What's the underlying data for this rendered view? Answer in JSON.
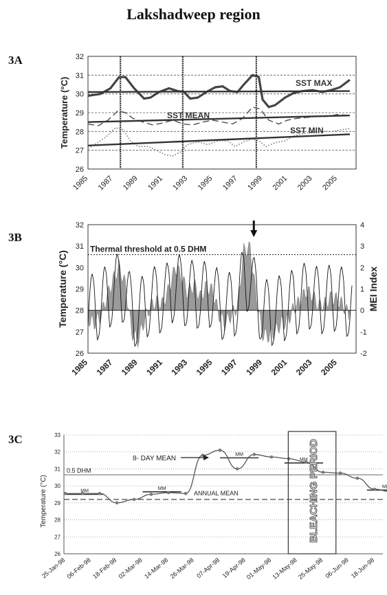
{
  "page_title": "Lakshadweep region",
  "chart_data": [
    {
      "panel": "3A",
      "type": "line",
      "ylabel": "Temperature (°C)",
      "xlim": [
        1985,
        2006.5
      ],
      "ylim": [
        26,
        32
      ],
      "yticks": [
        26,
        27,
        28,
        29,
        30,
        31,
        32
      ],
      "xticks": [
        "1985",
        "1987",
        "1989",
        "1991",
        "1993",
        "1995",
        "1997",
        "1999",
        "2001",
        "2003",
        "2005"
      ],
      "grid": "horizontal dashed",
      "vlines": [
        1987.6,
        1992.6,
        1998.5
      ],
      "series": [
        {
          "name": "SST MAX",
          "style": "thick",
          "points": [
            [
              1985,
              29.9
            ],
            [
              1986,
              30.0
            ],
            [
              1986.8,
              30.3
            ],
            [
              1987.5,
              30.9
            ],
            [
              1988,
              30.9
            ],
            [
              1988.7,
              30.3
            ],
            [
              1989.5,
              29.75
            ],
            [
              1990,
              29.8
            ],
            [
              1990.7,
              30.1
            ],
            [
              1991.5,
              30.3
            ],
            [
              1992.2,
              30.15
            ],
            [
              1992.7,
              30.1
            ],
            [
              1993.2,
              29.75
            ],
            [
              1993.8,
              29.8
            ],
            [
              1994.5,
              30.1
            ],
            [
              1995.2,
              30.35
            ],
            [
              1995.8,
              30.4
            ],
            [
              1996.4,
              30.15
            ],
            [
              1997,
              30.1
            ],
            [
              1997.5,
              30.5
            ],
            [
              1998.2,
              31.0
            ],
            [
              1998.7,
              30.9
            ],
            [
              1999,
              29.7
            ],
            [
              1999.5,
              29.3
            ],
            [
              2000,
              29.4
            ],
            [
              2000.8,
              29.8
            ],
            [
              2001.5,
              30.05
            ],
            [
              2002.2,
              30.15
            ],
            [
              2003,
              30.2
            ],
            [
              2003.8,
              30.1
            ],
            [
              2004.5,
              30.2
            ],
            [
              2005.2,
              30.35
            ],
            [
              2006,
              30.75
            ]
          ]
        },
        {
          "name": "SST MEAN",
          "style": "dashed",
          "points": [
            [
              1985,
              28.4
            ],
            [
              1985.8,
              28.3
            ],
            [
              1986.6,
              28.6
            ],
            [
              1987.4,
              29.1
            ],
            [
              1988,
              29.0
            ],
            [
              1988.6,
              28.7
            ],
            [
              1989.4,
              28.5
            ],
            [
              1990.2,
              28.35
            ],
            [
              1991,
              28.45
            ],
            [
              1991.8,
              28.6
            ],
            [
              1992.6,
              28.4
            ],
            [
              1993.4,
              28.35
            ],
            [
              1994.2,
              28.5
            ],
            [
              1995,
              28.6
            ],
            [
              1995.8,
              28.5
            ],
            [
              1996.6,
              28.4
            ],
            [
              1997.4,
              28.7
            ],
            [
              1998.2,
              29.3
            ],
            [
              1998.8,
              29.2
            ],
            [
              1999.5,
              28.6
            ],
            [
              2000.3,
              28.4
            ],
            [
              2001,
              28.6
            ],
            [
              2001.8,
              28.7
            ],
            [
              2002.6,
              28.75
            ],
            [
              2003.4,
              28.8
            ],
            [
              2004.2,
              28.8
            ],
            [
              2005,
              28.9
            ],
            [
              2006,
              28.85
            ]
          ]
        },
        {
          "name": "SST MIN",
          "style": "dotted",
          "points": [
            [
              1985,
              27.1
            ],
            [
              1985.8,
              27.4
            ],
            [
              1986.6,
              27.8
            ],
            [
              1987.2,
              28.2
            ],
            [
              1987.8,
              28.1
            ],
            [
              1988.4,
              27.5
            ],
            [
              1989,
              27.2
            ],
            [
              1989.8,
              27.2
            ],
            [
              1990.5,
              27.0
            ],
            [
              1991.2,
              26.75
            ],
            [
              1991.8,
              26.7
            ],
            [
              1992.4,
              26.9
            ],
            [
              1993,
              27.3
            ],
            [
              1993.8,
              27.45
            ],
            [
              1994.6,
              27.3
            ],
            [
              1995.4,
              27.5
            ],
            [
              1996.2,
              27.5
            ],
            [
              1996.8,
              27.2
            ],
            [
              1997.5,
              27.45
            ],
            [
              1998.2,
              27.6
            ],
            [
              1998.7,
              27.5
            ],
            [
              1999.3,
              27.2
            ],
            [
              2000,
              27.4
            ],
            [
              2000.8,
              27.5
            ],
            [
              2001.5,
              27.75
            ],
            [
              2002.3,
              27.9
            ],
            [
              2003,
              27.95
            ],
            [
              2003.8,
              28.0
            ],
            [
              2004.6,
              28.0
            ],
            [
              2005.4,
              28.1
            ],
            [
              2006,
              28.15
            ]
          ]
        },
        {
          "name": "SST MAX trend",
          "style": "solid",
          "points": [
            [
              1985,
              30.1
            ],
            [
              2006,
              30.15
            ]
          ]
        },
        {
          "name": "SST MEAN trend",
          "style": "solid",
          "points": [
            [
              1985,
              28.5
            ],
            [
              2006,
              28.85
            ]
          ]
        },
        {
          "name": "SST MIN trend",
          "style": "solid",
          "points": [
            [
              1985,
              27.25
            ],
            [
              2006,
              27.85
            ]
          ]
        }
      ],
      "labels": [
        "SST MAX",
        "SST MEAN",
        "SST MIN"
      ]
    },
    {
      "panel": "3B",
      "type": "line",
      "ylabel": "Temperature (°C)",
      "y2label": "MEI Index",
      "xlim": [
        1985,
        2006.5
      ],
      "ylim": [
        26,
        32
      ],
      "y2lim": [
        -2,
        4
      ],
      "yticks": [
        26,
        27,
        28,
        29,
        30,
        31,
        32
      ],
      "y2ticks": [
        -2,
        -1,
        0,
        1,
        2,
        3,
        4
      ],
      "xticks": [
        "1985",
        "1987",
        "1989",
        "1991",
        "1993",
        "1995",
        "1997",
        "1999",
        "2001",
        "2003",
        "2005"
      ],
      "threshold": 30.6,
      "annotation": "Thermal threshold at 0.5 DHM",
      "arrow_year": 1998.3,
      "mei": [
        [
          1985,
          -0.4
        ],
        [
          1985.5,
          -0.6
        ],
        [
          1986,
          -0.3
        ],
        [
          1986.5,
          0.6
        ],
        [
          1987,
          1.4
        ],
        [
          1987.5,
          2.0
        ],
        [
          1988,
          1.2
        ],
        [
          1988.5,
          -1.0
        ],
        [
          1989,
          -1.4
        ],
        [
          1989.5,
          -0.5
        ],
        [
          1990,
          0.2
        ],
        [
          1990.5,
          0.4
        ],
        [
          1991,
          0.3
        ],
        [
          1991.5,
          1.0
        ],
        [
          1992,
          2.0
        ],
        [
          1992.5,
          1.6
        ],
        [
          1993,
          0.8
        ],
        [
          1993.5,
          1.2
        ],
        [
          1994,
          0.6
        ],
        [
          1994.5,
          1.1
        ],
        [
          1995,
          0.9
        ],
        [
          1995.5,
          -0.2
        ],
        [
          1996,
          -0.6
        ],
        [
          1996.5,
          -0.2
        ],
        [
          1997,
          0.2
        ],
        [
          1997.5,
          2.8
        ],
        [
          1998,
          2.9
        ],
        [
          1998.5,
          0.6
        ],
        [
          1999,
          -1.1
        ],
        [
          1999.5,
          -1.2
        ],
        [
          2000,
          -1.0
        ],
        [
          2000.5,
          -0.6
        ],
        [
          2001,
          -0.5
        ],
        [
          2001.5,
          0.1
        ],
        [
          2002,
          0.4
        ],
        [
          2002.5,
          0.9
        ],
        [
          2003,
          0.7
        ],
        [
          2003.5,
          0.2
        ],
        [
          2004,
          0.3
        ],
        [
          2004.5,
          0.6
        ],
        [
          2005,
          0.5
        ],
        [
          2005.5,
          0.2
        ],
        [
          2006,
          -0.3
        ]
      ],
      "sst_monthly_pattern": {
        "peak_month": 4,
        "trough_month": 8,
        "base": 28.4,
        "amplitude": 1.6
      }
    },
    {
      "panel": "3C",
      "type": "line",
      "ylabel": "Temperature (°C)",
      "ylim": [
        26,
        33
      ],
      "yticks": [
        26,
        27,
        28,
        29,
        30,
        31,
        32,
        33
      ],
      "categories": [
        "25-Jan-98",
        "06-Feb-98",
        "18-Feb-98",
        "02-Mar-98",
        "14-Mar-98",
        "26-Mar-98",
        "07-Apr-98",
        "19-Apr-98",
        "01-May-98",
        "13-May-98",
        "25-May-98",
        "06-Jun-98",
        "18-Jun-98"
      ],
      "series": [
        {
          "name": "8- DAY MEAN",
          "x": [
            0,
            0.67,
            1.33,
            2,
            2.67,
            3.33,
            4,
            4.67,
            5.33,
            6,
            6.67,
            7.33,
            8,
            8.67,
            9.33,
            10,
            10.67,
            11.33,
            12,
            12.67,
            13.2
          ],
          "values": [
            29.55,
            29.55,
            29.55,
            29.0,
            29.2,
            29.5,
            29.6,
            29.55,
            31.8,
            32.1,
            31.0,
            31.85,
            31.7,
            31.6,
            31.4,
            30.8,
            30.75,
            30.45,
            29.8,
            29.65,
            29.6
          ]
        }
      ],
      "mm_segments": [
        [
          0,
          1.5,
          29.5
        ],
        [
          3,
          4.5,
          29.65
        ],
        [
          6,
          7.5,
          31.65
        ],
        [
          8.5,
          10,
          31.35
        ],
        [
          11.7,
          13.2,
          29.75
        ]
      ],
      "mm_label": "MM",
      "dhm_label": "0.5 DHM",
      "dhm_value": 30.65,
      "annual_mean_label": "ANNUAL MEAN",
      "annual_mean_value": 29.2,
      "box_label": "BLEACHING PERIOD",
      "box_range": [
        8.65,
        10.5
      ]
    }
  ]
}
